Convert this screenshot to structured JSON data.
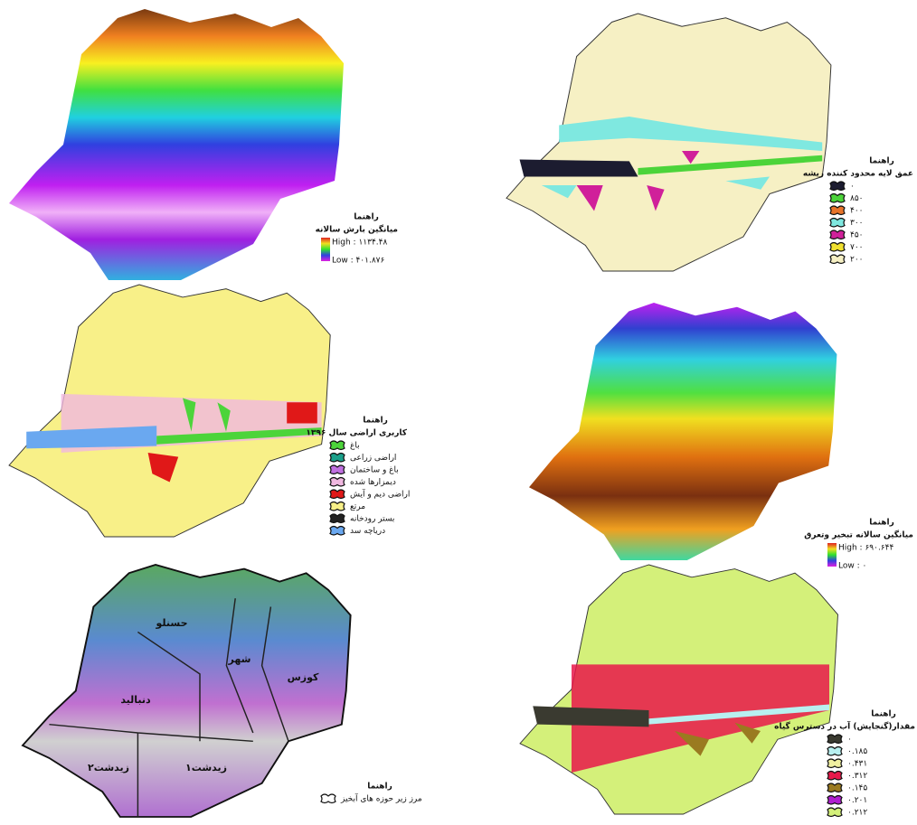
{
  "panels": [
    {
      "legend": {
        "heading": "راهنما",
        "title": "میانگین بارش سالانه",
        "high": "High : ۱۱۳۴.۴۸",
        "low": "Low : ۴۰۱.۸۷۶"
      }
    },
    {
      "legend": {
        "heading": "راهنما",
        "title": "عمق لایه محدود کننده ریشه",
        "items": [
          {
            "label": "۰",
            "color": "#1c1c30"
          },
          {
            "label": "۸۵۰",
            "color": "#4cd43a"
          },
          {
            "label": "۴۰۰",
            "color": "#e8742a"
          },
          {
            "label": "۳۰۰",
            "color": "#7fe8e0"
          },
          {
            "label": "۴۵۰",
            "color": "#d0209a"
          },
          {
            "label": "۷۰۰",
            "color": "#f0e030"
          },
          {
            "label": "۲۰۰",
            "color": "#f6f0c4"
          }
        ]
      }
    },
    {
      "legend": {
        "heading": "راهنما",
        "title": "کاربری اراضی سال ۱۳۹۶",
        "items": [
          {
            "label": "باغ",
            "color": "#4cd43a"
          },
          {
            "label": "اراضی زراعی",
            "color": "#1aa08a"
          },
          {
            "label": "باغ و ساختمان",
            "color": "#c070e0"
          },
          {
            "label": "دیمزارها شده",
            "color": "#f0b8e0"
          },
          {
            "label": "اراضی دیم و آیش",
            "color": "#e01818"
          },
          {
            "label": "مرتع",
            "color": "#f8f088"
          },
          {
            "label": "بستر رودخانه",
            "color": "#222222"
          },
          {
            "label": "دریاچه سد",
            "color": "#6aa8f0"
          }
        ]
      }
    },
    {
      "legend": {
        "heading": "راهنما",
        "title": "میانگین سالانه تبخیر وتعرق",
        "high": "High : ۶۹۰.۶۴۴",
        "low": "Low : ۰"
      }
    },
    {
      "labels": [
        "حسنلو",
        "شهر",
        "کوزس",
        "دنبالید",
        "زیدشت۲",
        "زیدشت۱"
      ],
      "legend": {
        "heading": "راهنما",
        "items": [
          {
            "label": "مرز زیر حوزه های آبخیز",
            "color": "#ffffff"
          }
        ]
      }
    },
    {
      "legend": {
        "heading": "راهنما",
        "title": "مقدار(گنجایش) آب در دسترس گیاه",
        "items": [
          {
            "label": "۰",
            "color": "#3a3a30"
          },
          {
            "label": "۰.۱۸۵",
            "color": "#b8f0f0"
          },
          {
            "label": "۰.۴۳۱",
            "color": "#f0f0a0"
          },
          {
            "label": "۰.۳۱۲",
            "color": "#e8184a"
          },
          {
            "label": "۰.۱۴۵",
            "color": "#9a7a20"
          },
          {
            "label": "۰.۲۰۱",
            "color": "#b020d0"
          },
          {
            "label": "۰.۲۱۲",
            "color": "#d4f07a"
          }
        ]
      }
    }
  ]
}
